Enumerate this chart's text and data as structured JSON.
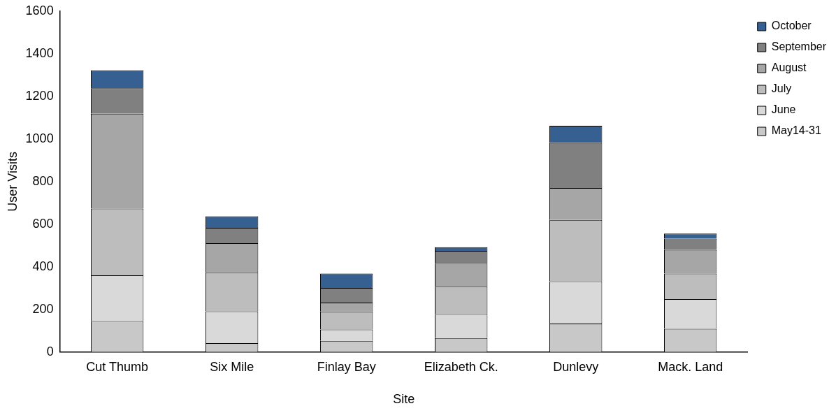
{
  "chart_data": {
    "type": "bar",
    "stacked": true,
    "xlabel": "Site",
    "ylabel": "User Visits",
    "categories": [
      "Cut Thumb",
      "Six Mile",
      "Finlay Bay",
      "Elizabeth Ck.",
      "Dunlevy",
      "Mack. Land"
    ],
    "series": [
      {
        "name": "May14-31",
        "color": "#c8c8c8",
        "values": [
          145,
          42,
          53,
          66,
          134,
          109
        ]
      },
      {
        "name": "June",
        "color": "#d9d9d9",
        "values": [
          215,
          149,
          53,
          112,
          198,
          140
        ]
      },
      {
        "name": "July",
        "color": "#bdbdbd",
        "values": [
          313,
          183,
          84,
          129,
          288,
          119
        ]
      },
      {
        "name": "August",
        "color": "#a6a6a6",
        "values": [
          446,
          137,
          42,
          111,
          150,
          112
        ]
      },
      {
        "name": "September",
        "color": "#808080",
        "values": [
          119,
          72,
          69,
          57,
          214,
          52
        ]
      },
      {
        "name": "October",
        "color": "#376092",
        "values": [
          85,
          54,
          67,
          17,
          78,
          24
        ]
      }
    ],
    "ylim": [
      0,
      1600
    ],
    "yticks": [
      0,
      200,
      400,
      600,
      800,
      1000,
      1200,
      1400,
      1600
    ],
    "grid": false,
    "legend": "top right"
  }
}
